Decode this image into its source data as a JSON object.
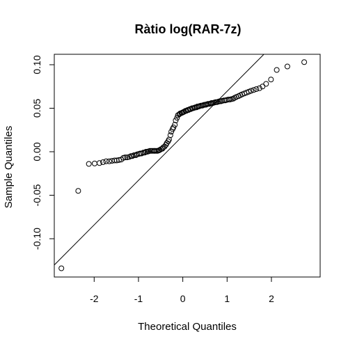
{
  "chart_data": {
    "type": "scatter",
    "title": "Ràtio log(RAR-7z)",
    "xlabel": "Theoretical Quantiles",
    "ylabel": "Sample Quantiles",
    "xlim": [
      -2.9,
      3.1
    ],
    "ylim": [
      -0.144,
      0.112
    ],
    "x_ticks": [
      -2,
      -1,
      0,
      1,
      2
    ],
    "x_tick_labels": [
      "-2",
      "-1",
      "0",
      "1",
      "2"
    ],
    "y_ticks": [
      -0.1,
      -0.05,
      0.0,
      0.05,
      0.1
    ],
    "y_tick_labels": [
      "-0.10",
      "-0.05",
      "0.00",
      "0.05",
      "0.10"
    ],
    "grid": false,
    "reference_line": {
      "slope": 0.0512,
      "intercept": 0.0183
    },
    "x": [
      -2.74,
      -2.36,
      -2.12,
      -1.99,
      -1.88,
      -1.8,
      -1.73,
      -1.66,
      -1.6,
      -1.54,
      -1.49,
      -1.44,
      -1.39,
      -1.34,
      -1.3,
      -1.26,
      -1.21,
      -1.17,
      -1.14,
      -1.1,
      -1.06,
      -1.03,
      -0.99,
      -0.96,
      -0.93,
      -0.89,
      -0.86,
      -0.83,
      -0.8,
      -0.77,
      -0.74,
      -0.71,
      -0.68,
      -0.65,
      -0.63,
      -0.6,
      -0.57,
      -0.54,
      -0.52,
      -0.49,
      -0.46,
      -0.44,
      -0.41,
      -0.38,
      -0.36,
      -0.33,
      -0.31,
      -0.28,
      -0.26,
      -0.23,
      -0.21,
      -0.18,
      -0.16,
      -0.13,
      -0.11,
      -0.08,
      -0.06,
      -0.03,
      -0.01,
      0.01,
      0.03,
      0.06,
      0.08,
      0.11,
      0.13,
      0.16,
      0.18,
      0.21,
      0.23,
      0.26,
      0.28,
      0.31,
      0.33,
      0.36,
      0.38,
      0.41,
      0.44,
      0.46,
      0.49,
      0.52,
      0.54,
      0.57,
      0.6,
      0.63,
      0.65,
      0.68,
      0.71,
      0.74,
      0.77,
      0.8,
      0.83,
      0.86,
      0.89,
      0.93,
      0.96,
      0.99,
      1.03,
      1.06,
      1.1,
      1.14,
      1.17,
      1.21,
      1.26,
      1.3,
      1.34,
      1.39,
      1.44,
      1.49,
      1.54,
      1.6,
      1.66,
      1.73,
      1.8,
      1.88,
      1.99,
      2.12,
      2.36,
      2.74
    ],
    "y": [
      -0.134,
      -0.045,
      -0.014,
      -0.0135,
      -0.013,
      -0.012,
      -0.011,
      -0.011,
      -0.0105,
      -0.01,
      -0.01,
      -0.0095,
      -0.009,
      -0.007,
      -0.0065,
      -0.0065,
      -0.006,
      -0.005,
      -0.005,
      -0.004,
      -0.004,
      -0.003,
      -0.0025,
      -0.002,
      -0.002,
      -0.001,
      -0.001,
      0.0,
      0.0,
      0.0005,
      0.001,
      0.001,
      0.001,
      0.001,
      0.001,
      0.001,
      0.001,
      0.0015,
      0.002,
      0.003,
      0.0035,
      0.005,
      0.006,
      0.008,
      0.01,
      0.012,
      0.014,
      0.019,
      0.023,
      0.026,
      0.028,
      0.031,
      0.036,
      0.039,
      0.042,
      0.043,
      0.044,
      0.0445,
      0.045,
      0.0455,
      0.046,
      0.047,
      0.047,
      0.048,
      0.048,
      0.049,
      0.049,
      0.05,
      0.05,
      0.0505,
      0.051,
      0.051,
      0.052,
      0.052,
      0.0525,
      0.053,
      0.053,
      0.0535,
      0.054,
      0.054,
      0.0545,
      0.055,
      0.055,
      0.0555,
      0.056,
      0.056,
      0.0565,
      0.057,
      0.057,
      0.0575,
      0.058,
      0.058,
      0.0585,
      0.059,
      0.059,
      0.0595,
      0.06,
      0.06,
      0.0605,
      0.061,
      0.062,
      0.063,
      0.064,
      0.065,
      0.066,
      0.067,
      0.068,
      0.069,
      0.07,
      0.071,
      0.072,
      0.073,
      0.075,
      0.078,
      0.083,
      0.094,
      0.098,
      0.103
    ]
  }
}
